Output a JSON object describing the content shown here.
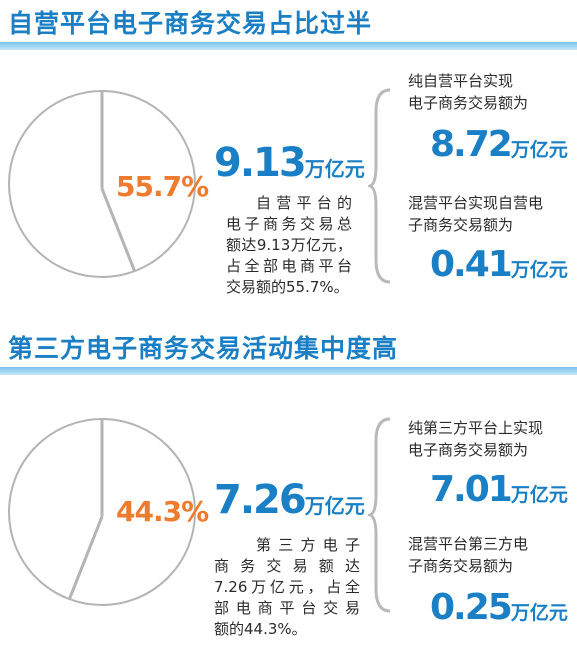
{
  "colors": {
    "blue": "#1a7fc4",
    "orange": "#ee7b2e",
    "gray": "#b4b4b4"
  },
  "sections": [
    {
      "title": "自营平台电子商务交易占比过半",
      "percent_label": "55.7%",
      "total_value": "9.13",
      "total_unit": "万亿元",
      "desc_lines": [
        "自营平台的",
        "电子商务交易总",
        "额达9.13万亿元，",
        "占全部电商平台",
        "交易额的55.7%。"
      ],
      "items": [
        {
          "label_lines": [
            "纯自营平台实现",
            "电子商务交易额为"
          ],
          "value": "8.72",
          "unit": "万亿元"
        },
        {
          "label_lines": [
            "混营平台实现自营电",
            "子商务交易额为"
          ],
          "value": "0.41",
          "unit": "万亿元"
        }
      ]
    },
    {
      "title": "第三方电子商务交易活动集中度高",
      "percent_label": "44.3%",
      "total_value": "7.26",
      "total_unit": "万亿元",
      "desc_lines": [
        "第三方电子",
        "商务交易额达",
        "7.26万亿元，占全",
        "部电商平台交易",
        "额的44.3%。"
      ],
      "items": [
        {
          "label_lines": [
            "纯第三方平台上实现",
            "电子商务交易额为"
          ],
          "value": "7.01",
          "unit": "万亿元"
        },
        {
          "label_lines": [
            "混营平台第三方电",
            "子商务交易额为"
          ],
          "value": "0.25",
          "unit": "万亿元"
        }
      ]
    }
  ],
  "chart_data": [
    {
      "type": "pie",
      "title": "自营平台电子商务交易占比过半",
      "values": [
        55.7,
        44.3
      ],
      "data_labels": [
        "55.7%"
      ]
    },
    {
      "type": "pie",
      "title": "第三方电子商务交易活动集中度高",
      "values": [
        44.3,
        55.7
      ],
      "data_labels": [
        "44.3%"
      ]
    }
  ]
}
